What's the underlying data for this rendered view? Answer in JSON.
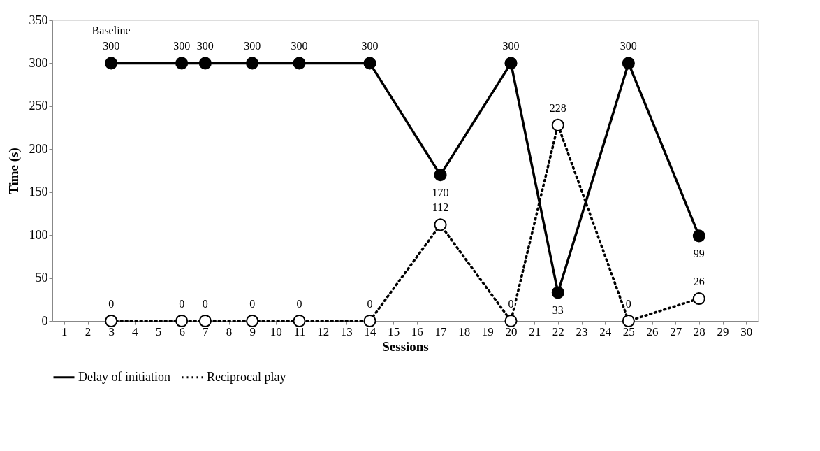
{
  "chart_data": {
    "type": "line",
    "xlabel": "Sessions",
    "ylabel": "Time (s)",
    "x": [
      3,
      6,
      7,
      9,
      11,
      14,
      17,
      20,
      22,
      25,
      28
    ],
    "xlim": [
      0.5,
      30.5
    ],
    "xticks": [
      1,
      2,
      3,
      4,
      5,
      6,
      7,
      8,
      9,
      10,
      11,
      12,
      13,
      14,
      15,
      16,
      17,
      18,
      19,
      20,
      21,
      22,
      23,
      24,
      25,
      26,
      27,
      28,
      29,
      30
    ],
    "ylim": [
      0,
      350
    ],
    "yticks": [
      0,
      50,
      100,
      150,
      200,
      250,
      300,
      350
    ],
    "series": [
      {
        "name": "Delay of initiation",
        "color": "#000000",
        "line_style": "solid",
        "values": [
          300,
          300,
          300,
          300,
          300,
          300,
          170,
          300,
          33,
          300,
          99
        ]
      },
      {
        "name": "Reciprocal play",
        "color": "#000000",
        "line_style": "dotted",
        "values": [
          0,
          0,
          0,
          0,
          0,
          0,
          112,
          0,
          228,
          0,
          26
        ]
      }
    ],
    "data_labels": true,
    "marker": "circle",
    "grid": false,
    "legend": "bottom",
    "annotations": [
      {
        "text": "Baseline",
        "x": 3,
        "y": 300
      }
    ]
  }
}
